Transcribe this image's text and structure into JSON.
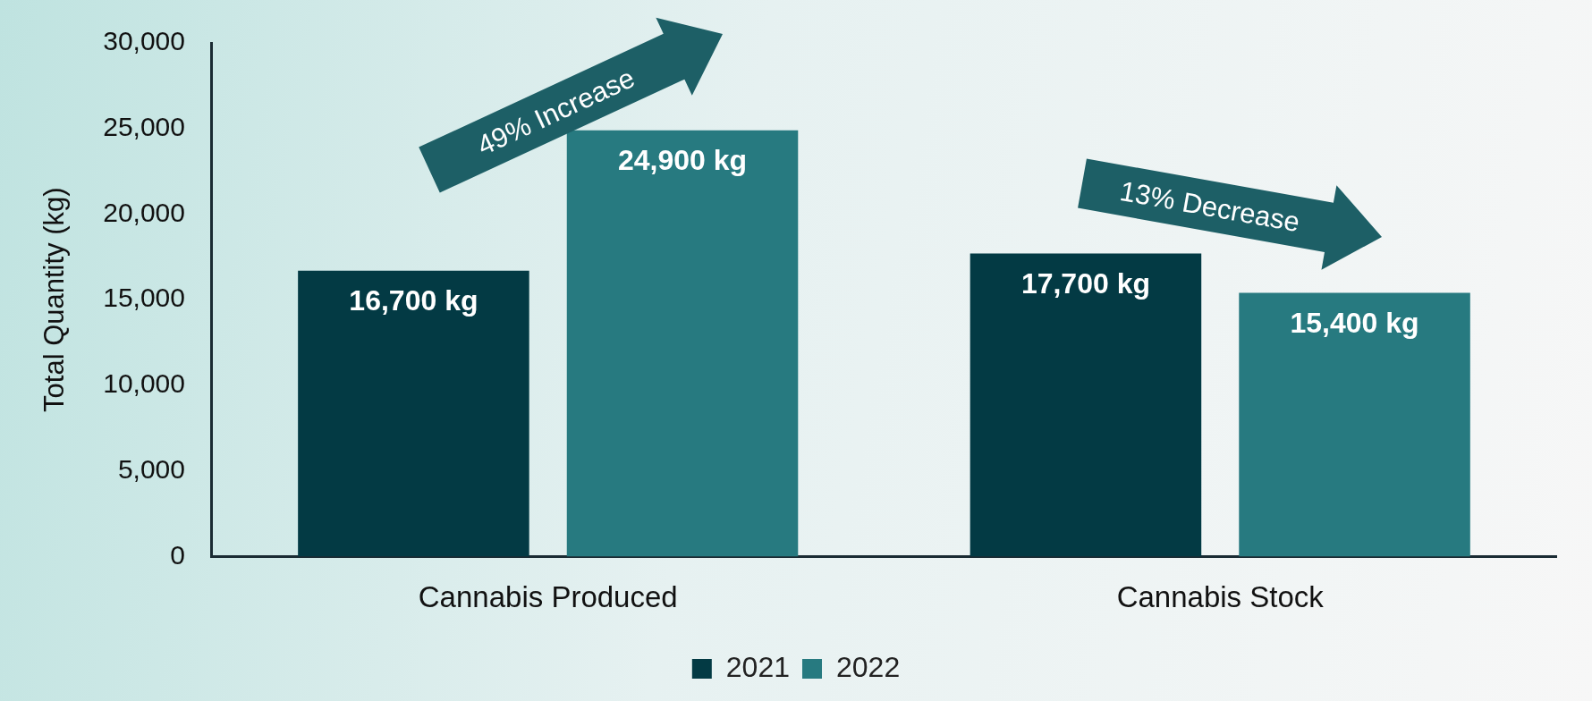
{
  "chart_data": {
    "type": "bar",
    "ylabel": "Total Quantity (kg)",
    "categories": [
      "Cannabis Produced",
      "Cannabis Stock"
    ],
    "series": [
      {
        "name": "2021",
        "color": "#033a44",
        "values": [
          16700,
          17700
        ],
        "value_labels": [
          "16,700 kg",
          "17,700 kg"
        ]
      },
      {
        "name": "2022",
        "color": "#277a80",
        "values": [
          24900,
          15400
        ],
        "value_labels": [
          "24,900 kg",
          "15,400 kg"
        ]
      }
    ],
    "ylim": [
      0,
      30000
    ],
    "yticks": [
      {
        "value": 0,
        "label": "0"
      },
      {
        "value": 5000,
        "label": "5,000"
      },
      {
        "value": 10000,
        "label": "10,000"
      },
      {
        "value": 15000,
        "label": "15,000"
      },
      {
        "value": 20000,
        "label": "20,000"
      },
      {
        "value": 25000,
        "label": "25,000"
      },
      {
        "value": 30000,
        "label": "30,000"
      }
    ],
    "grid": false,
    "legend": "bottom",
    "annotations": [
      "49% Increase",
      "13% Decrease"
    ]
  }
}
